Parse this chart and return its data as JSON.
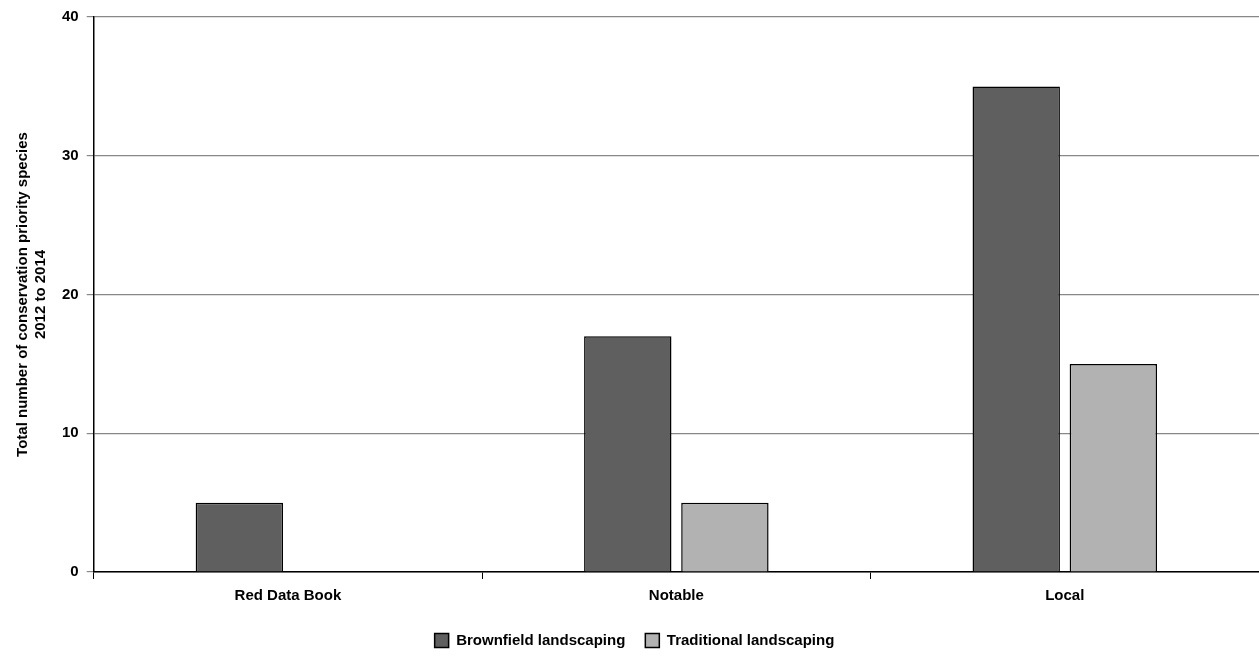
{
  "chart_data": {
    "type": "bar",
    "ylabel": "Total number of conservation priority species\n2012 to 2014",
    "categories": [
      "Red Data Book",
      "Notable",
      "Local"
    ],
    "series": [
      {
        "name": "Brownfield landscaping",
        "color": "#5f5f5f",
        "values": [
          5,
          17,
          35
        ]
      },
      {
        "name": "Traditional landscaping",
        "color": "#b2b2b2",
        "values": [
          0,
          5,
          15
        ]
      }
    ],
    "ylim": [
      0,
      40
    ],
    "yticks": [
      0,
      10,
      20,
      30,
      40
    ],
    "grid": "y",
    "legend": "bottom"
  }
}
